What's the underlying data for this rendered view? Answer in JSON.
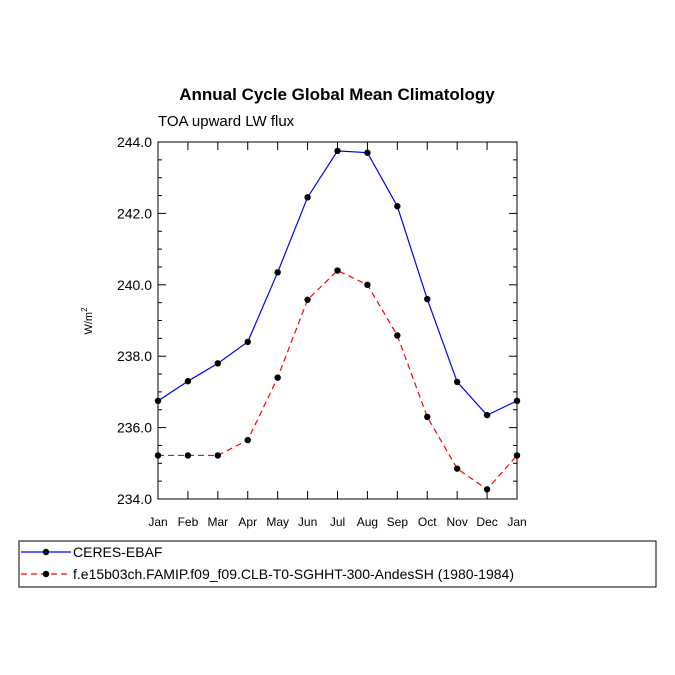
{
  "chart_data": {
    "type": "line",
    "title": "Annual Cycle Global Mean Climatology",
    "subtitle": "TOA upward LW flux",
    "xlabel": "",
    "ylabel": "W/m",
    "ylabel_superscript": "2",
    "categories": [
      "Jan",
      "Feb",
      "Mar",
      "Apr",
      "May",
      "Jun",
      "Jul",
      "Aug",
      "Sep",
      "Oct",
      "Nov",
      "Dec",
      "Jan"
    ],
    "ylim": [
      234.0,
      244.0
    ],
    "yticks": [
      234.0,
      236.0,
      238.0,
      240.0,
      242.0,
      244.0
    ],
    "ytick_labels": [
      "234.0",
      "236.0",
      "238.0",
      "240.0",
      "242.0",
      "244.0"
    ],
    "grid": false,
    "legend_position": "bottom",
    "series": [
      {
        "name": "CERES-EBAF",
        "color": "#0000ff",
        "line_style": "solid",
        "values": [
          236.75,
          237.3,
          237.8,
          238.4,
          240.35,
          242.45,
          243.75,
          243.7,
          242.2,
          239.6,
          237.28,
          236.35,
          236.75
        ]
      },
      {
        "name": "f.e15b03ch.FAMIP.f09_f09.CLB-T0-SGHHT-300-AndesSH (1980-1984)",
        "color": "#ff0000",
        "line_style": "dashed",
        "values": [
          235.22,
          235.22,
          235.22,
          235.65,
          237.4,
          239.58,
          240.4,
          240.0,
          238.58,
          236.3,
          234.85,
          234.27,
          235.22
        ]
      }
    ]
  }
}
